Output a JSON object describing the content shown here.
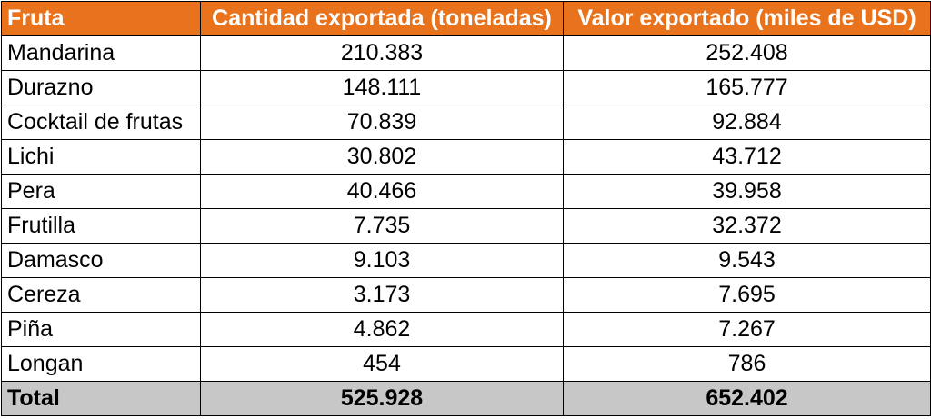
{
  "table": {
    "headers": [
      "Fruta",
      "Cantidad exportada (toneladas)",
      "Valor exportado (miles de USD)"
    ],
    "rows": [
      [
        "Mandarina",
        "210.383",
        "252.408"
      ],
      [
        "Durazno",
        "148.111",
        "165.777"
      ],
      [
        "Cocktail de frutas",
        "70.839",
        "92.884"
      ],
      [
        "Lichi",
        "30.802",
        "43.712"
      ],
      [
        "Pera",
        "40.466",
        "39.958"
      ],
      [
        "Frutilla",
        "7.735",
        "32.372"
      ],
      [
        "Damasco",
        "9.103",
        "9.543"
      ],
      [
        "Cereza",
        "3.173",
        "7.695"
      ],
      [
        "Piña",
        "4.862",
        "7.267"
      ],
      [
        "Longan",
        "454",
        "786"
      ]
    ],
    "total": [
      "Total",
      "525.928",
      "652.402"
    ]
  },
  "colors": {
    "header_bg": "#e9731c",
    "header_text": "#ffffff",
    "total_bg": "#c7c7c7"
  }
}
